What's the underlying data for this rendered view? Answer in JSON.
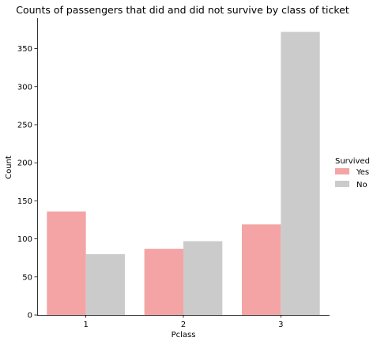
{
  "chart_data": {
    "type": "bar",
    "title": "Counts of passengers that did and did not survive by class of ticket",
    "xlabel": "Pclass",
    "ylabel": "Count",
    "categories": [
      "1",
      "2",
      "3"
    ],
    "ylim": [
      0,
      390
    ],
    "yticks": [
      0,
      50,
      100,
      150,
      200,
      250,
      300,
      350
    ],
    "series": [
      {
        "name": "Yes",
        "values": [
          136,
          87,
          119
        ],
        "color": "#f4a4a4"
      },
      {
        "name": "No",
        "values": [
          80,
          97,
          372
        ],
        "color": "#cbcbcb"
      }
    ],
    "legend": {
      "title": "Survived",
      "placement": "right"
    },
    "grid": false
  }
}
